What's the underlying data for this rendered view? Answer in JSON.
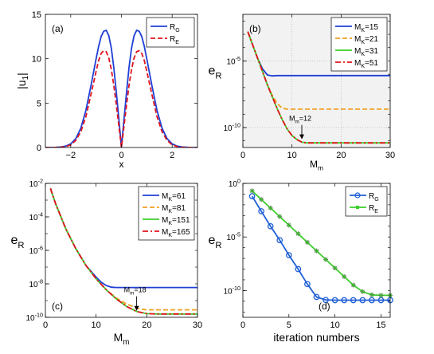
{
  "figure": {
    "description_panels": [
      "(a)",
      "(b)",
      "(c)",
      "(d)"
    ]
  },
  "chart_data": [
    {
      "panel": "(a)",
      "type": "line",
      "xlabel": "x",
      "ylabel": "|u_1|",
      "xlim": [
        -3,
        3
      ],
      "ylim": [
        0,
        15
      ],
      "xticks": [
        -2,
        0,
        2
      ],
      "yticks": [
        0,
        5,
        10,
        15
      ],
      "legend_position": "top-right",
      "series": [
        {
          "name": "R_G",
          "color": "#1f3fd6",
          "style": "solid",
          "x": [
            -3.0,
            -2.8,
            -2.6,
            -2.4,
            -2.2,
            -2.0,
            -1.8,
            -1.6,
            -1.4,
            -1.2,
            -1.0,
            -0.9,
            -0.8,
            -0.7,
            -0.6,
            -0.5,
            -0.4,
            -0.3,
            -0.2,
            -0.1,
            0.0,
            0.1,
            0.2,
            0.3,
            0.4,
            0.5,
            0.6,
            0.7,
            0.8,
            0.9,
            1.0,
            1.2,
            1.4,
            1.6,
            1.8,
            2.0,
            2.2,
            2.4,
            2.6,
            2.8,
            3.0
          ],
          "y": [
            0.0,
            0.0,
            0.02,
            0.05,
            0.15,
            0.4,
            1.0,
            2.2,
            4.2,
            7.0,
            10.0,
            11.4,
            12.5,
            13.1,
            13.2,
            12.6,
            11.2,
            9.0,
            6.2,
            3.2,
            0.0,
            3.2,
            6.2,
            9.0,
            11.2,
            12.6,
            13.2,
            13.1,
            12.5,
            11.4,
            10.0,
            7.0,
            4.2,
            2.2,
            1.0,
            0.4,
            0.15,
            0.05,
            0.02,
            0.0,
            0.0
          ]
        },
        {
          "name": "R_E",
          "color": "#e0141e",
          "style": "dashed",
          "x": [
            -3.0,
            -2.8,
            -2.6,
            -2.4,
            -2.2,
            -2.0,
            -1.8,
            -1.6,
            -1.4,
            -1.2,
            -1.0,
            -0.9,
            -0.8,
            -0.7,
            -0.6,
            -0.5,
            -0.4,
            -0.3,
            -0.2,
            -0.1,
            0.0,
            0.1,
            0.2,
            0.3,
            0.4,
            0.5,
            0.6,
            0.7,
            0.8,
            0.9,
            1.0,
            1.2,
            1.4,
            1.6,
            1.8,
            2.0,
            2.2,
            2.4,
            2.6,
            2.8,
            3.0
          ],
          "y": [
            0.0,
            0.0,
            0.01,
            0.03,
            0.1,
            0.3,
            0.8,
            1.8,
            3.5,
            6.0,
            8.6,
            9.8,
            10.6,
            10.9,
            10.8,
            10.1,
            8.8,
            7.0,
            4.8,
            2.4,
            0.0,
            2.4,
            4.8,
            7.0,
            8.8,
            10.1,
            10.8,
            10.9,
            10.6,
            9.8,
            8.6,
            6.0,
            3.5,
            1.8,
            0.8,
            0.3,
            0.1,
            0.03,
            0.01,
            0.0,
            0.0
          ]
        }
      ]
    },
    {
      "panel": "(b)",
      "type": "line",
      "xlabel": "M_m",
      "ylabel": "e_R",
      "xlim": [
        0,
        30
      ],
      "ylim_log10": [
        -11.5,
        -1.5
      ],
      "yscale": "log",
      "xticks": [
        0,
        10,
        20,
        30
      ],
      "yticks_log10": [
        -10,
        -5
      ],
      "grid": true,
      "legend_position": "top-right",
      "annotation": {
        "text": "M_m=12",
        "x": 12,
        "y_log10": -11.0
      },
      "series": [
        {
          "name": "M_K=15",
          "color": "#1f3fd6",
          "style": "solid",
          "x": [
            1,
            2,
            3,
            4,
            5,
            6,
            7,
            8,
            10,
            12,
            15,
            20,
            25,
            30
          ],
          "y_log10": [
            -2.8,
            -3.8,
            -4.8,
            -5.6,
            -6.05,
            -6.12,
            -6.1,
            -6.1,
            -6.1,
            -6.1,
            -6.1,
            -6.1,
            -6.1,
            -6.1
          ]
        },
        {
          "name": "M_K=21",
          "color": "#f0a020",
          "style": "dashed",
          "x": [
            1,
            2,
            3,
            4,
            5,
            6,
            7,
            8,
            9,
            10,
            12,
            15,
            20,
            25,
            30
          ],
          "y_log10": [
            -2.8,
            -3.8,
            -4.8,
            -5.8,
            -6.8,
            -7.6,
            -8.2,
            -8.55,
            -8.62,
            -8.62,
            -8.62,
            -8.62,
            -8.62,
            -8.62,
            -8.62
          ]
        },
        {
          "name": "M_K=31",
          "color": "#3ccf2a",
          "style": "solid",
          "x": [
            1,
            2,
            3,
            4,
            5,
            6,
            7,
            8,
            9,
            10,
            11,
            12,
            13,
            15,
            20,
            25,
            30
          ],
          "y_log10": [
            -2.8,
            -3.8,
            -4.8,
            -5.8,
            -6.8,
            -7.7,
            -8.6,
            -9.4,
            -10.1,
            -10.6,
            -10.9,
            -11.1,
            -11.15,
            -11.15,
            -11.15,
            -11.15,
            -11.15
          ]
        },
        {
          "name": "M_K=51",
          "color": "#e0141e",
          "style": "dashdot",
          "x": [
            1,
            2,
            3,
            4,
            5,
            6,
            7,
            8,
            9,
            10,
            11,
            12,
            13,
            15,
            20,
            25,
            30
          ],
          "y_log10": [
            -2.8,
            -3.8,
            -4.8,
            -5.8,
            -6.8,
            -7.7,
            -8.6,
            -9.4,
            -10.1,
            -10.6,
            -10.9,
            -11.1,
            -11.15,
            -11.15,
            -11.15,
            -11.15,
            -11.15
          ]
        }
      ]
    },
    {
      "panel": "(c)",
      "type": "line",
      "xlabel": "M_m",
      "ylabel": "e_R",
      "xlim": [
        0,
        30
      ],
      "ylim_log10": [
        -10,
        -2
      ],
      "yscale": "log",
      "xticks": [
        0,
        10,
        20,
        30
      ],
      "yticks_log10": [
        -10,
        -8,
        -6,
        -4,
        -2
      ],
      "legend_position": "top-right",
      "annotation": {
        "text": "M_m=18",
        "x": 18,
        "y_log10": -9.7
      },
      "series": [
        {
          "name": "M_K=61",
          "color": "#1f3fd6",
          "style": "solid",
          "x": [
            1,
            2,
            4,
            6,
            8,
            10,
            11,
            12,
            13,
            14,
            16,
            20,
            25,
            30
          ],
          "y_log10": [
            -2.3,
            -3.2,
            -4.7,
            -5.9,
            -6.9,
            -7.6,
            -7.9,
            -8.1,
            -8.2,
            -8.22,
            -8.22,
            -8.22,
            -8.22,
            -8.22
          ]
        },
        {
          "name": "M_K=81",
          "color": "#f0a020",
          "style": "dashed",
          "x": [
            1,
            2,
            4,
            6,
            8,
            10,
            12,
            14,
            16,
            18,
            19,
            20,
            25,
            30
          ],
          "y_log10": [
            -2.3,
            -3.2,
            -4.7,
            -5.9,
            -6.9,
            -7.7,
            -8.35,
            -8.85,
            -9.2,
            -9.45,
            -9.52,
            -9.55,
            -9.55,
            -9.55
          ]
        },
        {
          "name": "M_K=151",
          "color": "#3ccf2a",
          "style": "solid",
          "x": [
            1,
            2,
            4,
            6,
            8,
            10,
            12,
            14,
            16,
            18,
            20,
            22,
            25,
            30
          ],
          "y_log10": [
            -2.3,
            -3.2,
            -4.7,
            -5.9,
            -6.9,
            -7.7,
            -8.35,
            -8.9,
            -9.35,
            -9.65,
            -9.78,
            -9.8,
            -9.8,
            -9.8
          ]
        },
        {
          "name": "M_K=165",
          "color": "#e0141e",
          "style": "dashdot",
          "x": [
            1,
            2,
            4,
            6,
            8,
            10,
            12,
            14,
            16,
            18,
            20,
            22,
            25,
            30
          ],
          "y_log10": [
            -2.3,
            -3.2,
            -4.7,
            -5.9,
            -6.9,
            -7.7,
            -8.35,
            -8.9,
            -9.35,
            -9.65,
            -9.78,
            -9.8,
            -9.8,
            -9.8
          ]
        }
      ]
    },
    {
      "panel": "(d)",
      "type": "line",
      "xlabel": "iteration numbers",
      "ylabel": "e_R",
      "xlim": [
        0,
        16
      ],
      "ylim_log10": [
        -12.5,
        0
      ],
      "yscale": "log",
      "xticks": [
        0,
        5,
        10,
        15
      ],
      "yticks_log10": [
        -10,
        -5,
        0
      ],
      "legend_position": "top-right",
      "series": [
        {
          "name": "R_G",
          "color": "#1f5fd6",
          "marker": "circle",
          "x": [
            1,
            2,
            3,
            4,
            5,
            6,
            7,
            8,
            9,
            10,
            11,
            12,
            13,
            14,
            15,
            16
          ],
          "y_log10": [
            -1.2,
            -2.6,
            -4.0,
            -5.3,
            -6.7,
            -8.0,
            -9.4,
            -10.6,
            -10.88,
            -10.9,
            -10.9,
            -10.9,
            -10.9,
            -10.9,
            -10.9,
            -10.9
          ]
        },
        {
          "name": "R_E",
          "color": "#3ccf2a",
          "marker": "star",
          "x": [
            1,
            2,
            3,
            4,
            5,
            6,
            7,
            8,
            9,
            10,
            11,
            12,
            13,
            14,
            15,
            16
          ],
          "y_log10": [
            -0.7,
            -1.5,
            -2.3,
            -3.1,
            -3.9,
            -4.7,
            -5.5,
            -6.3,
            -7.1,
            -7.9,
            -8.7,
            -9.5,
            -10.1,
            -10.4,
            -10.45,
            -10.45
          ]
        }
      ]
    }
  ]
}
